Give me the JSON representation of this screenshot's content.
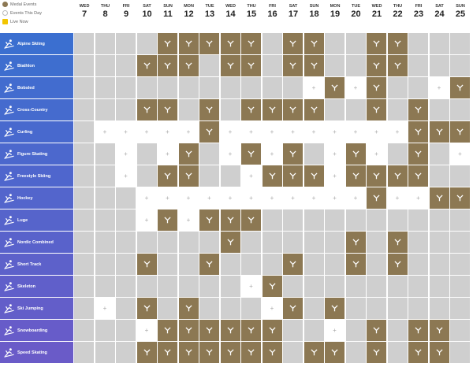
{
  "legend": {
    "medal_events": "Medal Events",
    "events_this_day": "Events This Day",
    "live_now": "Live Now"
  },
  "colors": {
    "medal": "#8c7853",
    "event": "#ffffff",
    "empty": "#cfcfcf",
    "sport_top": "#3b6fd0",
    "sport_bottom": "#6a5bc8"
  },
  "days": [
    {
      "name": "WED",
      "date": "7"
    },
    {
      "name": "THU",
      "date": "8"
    },
    {
      "name": "FRI",
      "date": "9"
    },
    {
      "name": "SAT",
      "date": "10"
    },
    {
      "name": "SUN",
      "date": "11"
    },
    {
      "name": "MON",
      "date": "12"
    },
    {
      "name": "TUE",
      "date": "13"
    },
    {
      "name": "WED",
      "date": "14"
    },
    {
      "name": "THU",
      "date": "15"
    },
    {
      "name": "FRI",
      "date": "16"
    },
    {
      "name": "SAT",
      "date": "17"
    },
    {
      "name": "SUN",
      "date": "18"
    },
    {
      "name": "MON",
      "date": "19"
    },
    {
      "name": "TUE",
      "date": "20"
    },
    {
      "name": "WED",
      "date": "21"
    },
    {
      "name": "THU",
      "date": "22"
    },
    {
      "name": "FRI",
      "date": "23"
    },
    {
      "name": "SAT",
      "date": "24"
    },
    {
      "name": "SUN",
      "date": "25"
    }
  ],
  "sports": [
    {
      "label": "Alpine Skiing",
      "icon": "alpine-skiing-icon",
      "cells": "eeeeMMMMMeMMeeMMeee"
    },
    {
      "label": "Biathlon",
      "icon": "biathlon-icon",
      "cells": "eeeMMMeMMeMMeeMMeee"
    },
    {
      "label": "Bobsled",
      "icon": "bobsled-icon",
      "cells": "eeeeeeeeeeeWMWMeeWM"
    },
    {
      "label": "Cross-Country",
      "icon": "cross-country-icon",
      "cells": "eeeMMeMeMMMMeeMeMee"
    },
    {
      "label": "Curling",
      "icon": "curling-icon",
      "cells": "eWWWWWMWWWWWWWWWMMM"
    },
    {
      "label": "Figure Skating",
      "icon": "figure-skating-icon",
      "cells": "eeWeWMeWMWMeWMWeMeW"
    },
    {
      "label": "Freestyle Skiing",
      "icon": "freestyle-skiing-icon",
      "cells": "eeWeMMeeWMMMWMMMMee"
    },
    {
      "label": "Hockey",
      "icon": "hockey-icon",
      "cells": "eeeWWWWWWWWWWWMWWMM"
    },
    {
      "label": "Luge",
      "icon": "luge-icon",
      "cells": "eeeWMWMMMeeeeeeeeee"
    },
    {
      "label": "Nordic Combined",
      "icon": "nordic-combined-icon",
      "cells": "eeeeeeeMeeeeeMeMeee"
    },
    {
      "label": "Short Track",
      "icon": "short-track-icon",
      "cells": "eeeMeeMeeeMeeMeMeee"
    },
    {
      "label": "Skeleton",
      "icon": "skeleton-icon",
      "cells": "eeeeeeeeWMeeeeeeeee"
    },
    {
      "label": "Ski Jumping",
      "icon": "ski-jumping-icon",
      "cells": "eWeMeMeeeWMeMeeeeee"
    },
    {
      "label": "Snowboarding",
      "icon": "snowboarding-icon",
      "cells": "eeeWMMMMMMeeWeMeMMe"
    },
    {
      "label": "Speed Skating",
      "icon": "speed-skating-icon",
      "cells": "eeeMMMMMMMeMMeMeMMe"
    }
  ]
}
